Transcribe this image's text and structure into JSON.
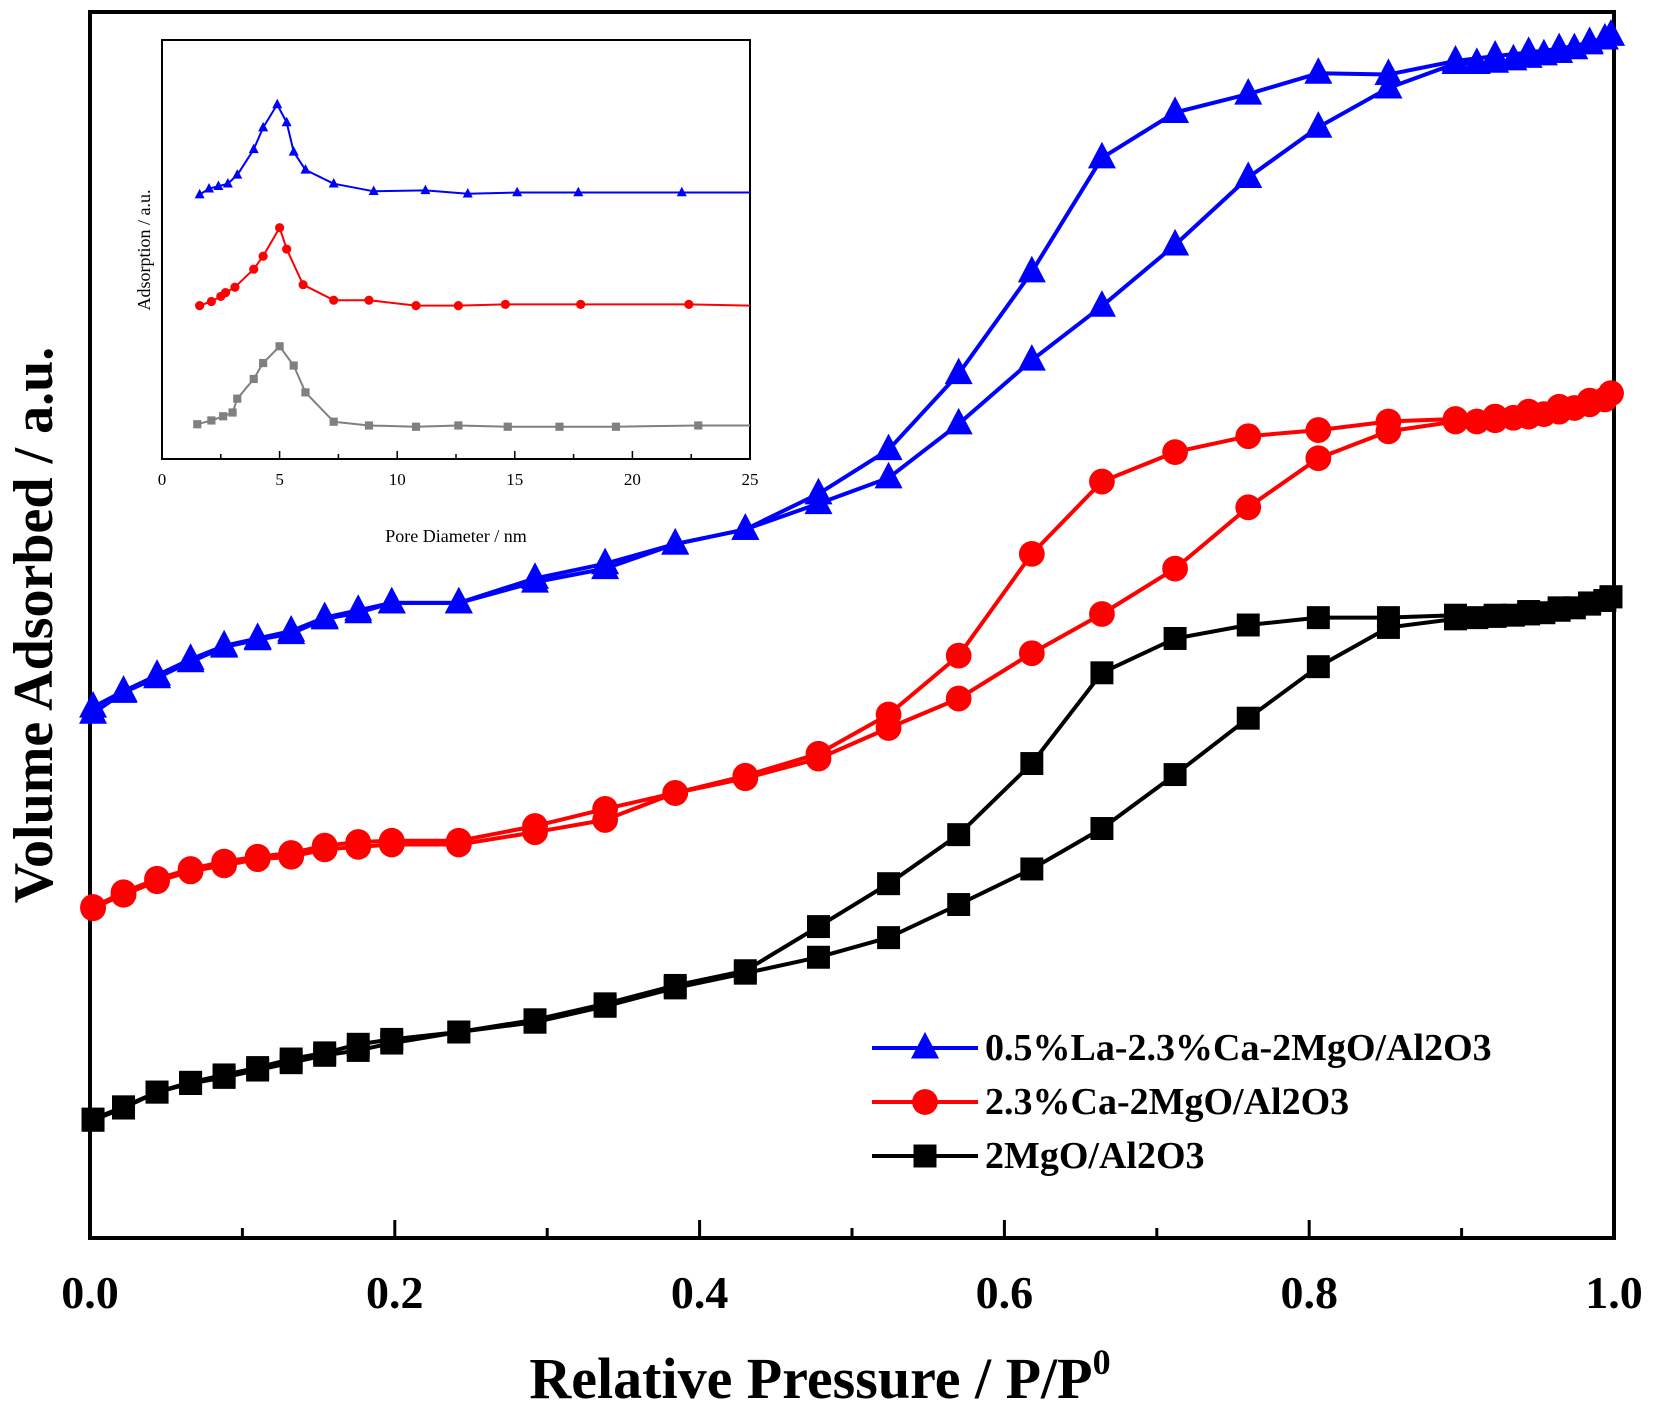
{
  "chart_data": [
    {
      "type": "line",
      "title": "",
      "xlabel": "Relative Pressure / P/P",
      "xlabel_superscript": "0",
      "ylabel": "Volume Adsorbed / a.u.",
      "xlim": [
        0,
        1
      ],
      "ylim": [
        0,
        100
      ],
      "x_ticks": [
        "0.0",
        "0.2",
        "0.4",
        "0.6",
        "0.8",
        "1.0"
      ],
      "y_ticks_shown": false,
      "legend_position": "bottom-right",
      "series": [
        {
          "name": "0.5%La-2.3%Ca-2MgO/Al2O3",
          "color": "#0000ff",
          "marker": "triangle",
          "adsorption": [
            [
              0.002,
              42.8
            ],
            [
              0.022,
              44.5
            ],
            [
              0.044,
              45.7
            ],
            [
              0.066,
              47.0
            ],
            [
              0.088,
              48.2
            ],
            [
              0.11,
              48.8
            ],
            [
              0.132,
              49.3
            ],
            [
              0.154,
              50.5
            ],
            [
              0.176,
              51.0
            ],
            [
              0.198,
              51.8
            ],
            [
              0.242,
              51.8
            ],
            [
              0.292,
              53.5
            ],
            [
              0.338,
              54.6
            ],
            [
              0.384,
              56.6
            ],
            [
              0.43,
              57.8
            ],
            [
              0.478,
              59.9
            ],
            [
              0.524,
              62.0
            ],
            [
              0.57,
              66.4
            ],
            [
              0.618,
              71.6
            ],
            [
              0.664,
              76.0
            ],
            [
              0.712,
              81.0
            ],
            [
              0.76,
              86.5
            ],
            [
              0.806,
              90.6
            ],
            [
              0.852,
              93.8
            ],
            [
              0.896,
              95.8
            ],
            [
              0.91,
              95.8
            ],
            [
              0.922,
              95.9
            ],
            [
              0.934,
              96.1
            ],
            [
              0.944,
              96.3
            ],
            [
              0.954,
              96.5
            ],
            [
              0.964,
              96.7
            ],
            [
              0.974,
              97.0
            ],
            [
              0.984,
              97.4
            ],
            [
              0.994,
              97.8
            ],
            [
              0.998,
              98.1
            ]
          ],
          "desorption": [
            [
              0.998,
              98.1
            ],
            [
              0.984,
              97.5
            ],
            [
              0.964,
              97.0
            ],
            [
              0.944,
              96.7
            ],
            [
              0.922,
              96.4
            ],
            [
              0.896,
              96.0
            ],
            [
              0.852,
              94.9
            ],
            [
              0.806,
              95.0
            ],
            [
              0.76,
              93.3
            ],
            [
              0.712,
              91.8
            ],
            [
              0.664,
              88.1
            ],
            [
              0.618,
              78.8
            ],
            [
              0.57,
              70.5
            ],
            [
              0.524,
              64.3
            ],
            [
              0.478,
              60.7
            ],
            [
              0.43,
              57.8
            ],
            [
              0.384,
              56.6
            ],
            [
              0.338,
              55.0
            ],
            [
              0.292,
              53.8
            ],
            [
              0.242,
              51.8
            ],
            [
              0.198,
              51.8
            ],
            [
              0.176,
              51.2
            ],
            [
              0.154,
              50.6
            ],
            [
              0.132,
              49.5
            ],
            [
              0.11,
              48.9
            ],
            [
              0.088,
              48.3
            ],
            [
              0.066,
              47.2
            ],
            [
              0.044,
              45.9
            ],
            [
              0.022,
              44.6
            ],
            [
              0.002,
              43.3
            ]
          ]
        },
        {
          "name": "2.3%Ca-2MgO/Al2O3",
          "color": "#ff0000",
          "marker": "circle",
          "adsorption": [
            [
              0.002,
              26.9
            ],
            [
              0.022,
              28.0
            ],
            [
              0.044,
              29.1
            ],
            [
              0.066,
              29.9
            ],
            [
              0.088,
              30.4
            ],
            [
              0.11,
              30.9
            ],
            [
              0.132,
              31.1
            ],
            [
              0.154,
              31.7
            ],
            [
              0.176,
              31.9
            ],
            [
              0.198,
              32.1
            ],
            [
              0.242,
              32.1
            ],
            [
              0.292,
              33.1
            ],
            [
              0.338,
              34.1
            ],
            [
              0.384,
              36.3
            ],
            [
              0.43,
              37.5
            ],
            [
              0.478,
              39.1
            ],
            [
              0.524,
              41.6
            ],
            [
              0.57,
              44.0
            ],
            [
              0.618,
              47.7
            ],
            [
              0.664,
              50.9
            ],
            [
              0.712,
              54.6
            ],
            [
              0.76,
              59.6
            ],
            [
              0.806,
              63.6
            ],
            [
              0.852,
              65.8
            ],
            [
              0.896,
              66.6
            ],
            [
              0.91,
              66.6
            ],
            [
              0.922,
              66.7
            ],
            [
              0.934,
              66.9
            ],
            [
              0.944,
              67.0
            ],
            [
              0.954,
              67.2
            ],
            [
              0.964,
              67.4
            ],
            [
              0.974,
              67.7
            ],
            [
              0.984,
              68.0
            ],
            [
              0.994,
              68.4
            ],
            [
              0.998,
              68.9
            ]
          ],
          "desorption": [
            [
              0.998,
              68.9
            ],
            [
              0.984,
              68.3
            ],
            [
              0.964,
              67.8
            ],
            [
              0.944,
              67.4
            ],
            [
              0.922,
              67.0
            ],
            [
              0.896,
              66.8
            ],
            [
              0.852,
              66.6
            ],
            [
              0.806,
              65.9
            ],
            [
              0.76,
              65.4
            ],
            [
              0.712,
              64.1
            ],
            [
              0.664,
              61.7
            ],
            [
              0.618,
              55.8
            ],
            [
              0.57,
              47.5
            ],
            [
              0.524,
              42.7
            ],
            [
              0.478,
              39.5
            ],
            [
              0.43,
              37.7
            ],
            [
              0.384,
              36.3
            ],
            [
              0.338,
              35.0
            ],
            [
              0.292,
              33.6
            ],
            [
              0.242,
              32.4
            ],
            [
              0.198,
              32.4
            ],
            [
              0.176,
              32.3
            ],
            [
              0.154,
              32.0
            ],
            [
              0.132,
              31.4
            ],
            [
              0.11,
              31.1
            ],
            [
              0.088,
              30.7
            ],
            [
              0.066,
              30.1
            ],
            [
              0.044,
              29.3
            ],
            [
              0.022,
              28.2
            ],
            [
              0.002,
              27.0
            ]
          ]
        },
        {
          "name": "2MgO/Al2O3",
          "color": "#000000",
          "marker": "square",
          "adsorption": [
            [
              0.002,
              9.6
            ],
            [
              0.022,
              10.6
            ],
            [
              0.044,
              11.9
            ],
            [
              0.066,
              12.6
            ],
            [
              0.088,
              13.1
            ],
            [
              0.11,
              13.7
            ],
            [
              0.132,
              14.3
            ],
            [
              0.154,
              14.9
            ],
            [
              0.176,
              15.3
            ],
            [
              0.198,
              15.9
            ],
            [
              0.242,
              16.8
            ],
            [
              0.292,
              17.6
            ],
            [
              0.338,
              18.9
            ],
            [
              0.384,
              20.4
            ],
            [
              0.43,
              21.6
            ],
            [
              0.478,
              22.9
            ],
            [
              0.524,
              24.5
            ],
            [
              0.57,
              27.2
            ],
            [
              0.618,
              30.1
            ],
            [
              0.664,
              33.4
            ],
            [
              0.712,
              37.8
            ],
            [
              0.76,
              42.4
            ],
            [
              0.806,
              46.6
            ],
            [
              0.852,
              49.8
            ],
            [
              0.896,
              50.5
            ],
            [
              0.91,
              50.6
            ],
            [
              0.922,
              50.7
            ],
            [
              0.934,
              50.8
            ],
            [
              0.944,
              50.9
            ],
            [
              0.954,
              51.0
            ],
            [
              0.964,
              51.2
            ],
            [
              0.974,
              51.4
            ],
            [
              0.984,
              51.7
            ],
            [
              0.994,
              52.0
            ],
            [
              0.998,
              52.3
            ]
          ],
          "desorption": [
            [
              0.998,
              52.3
            ],
            [
              0.984,
              51.8
            ],
            [
              0.964,
              51.4
            ],
            [
              0.944,
              51.1
            ],
            [
              0.922,
              50.8
            ],
            [
              0.896,
              50.8
            ],
            [
              0.852,
              50.6
            ],
            [
              0.806,
              50.6
            ],
            [
              0.76,
              50.0
            ],
            [
              0.712,
              48.9
            ],
            [
              0.664,
              46.1
            ],
            [
              0.618,
              38.7
            ],
            [
              0.57,
              32.9
            ],
            [
              0.524,
              28.9
            ],
            [
              0.478,
              25.4
            ],
            [
              0.43,
              21.8
            ],
            [
              0.384,
              20.6
            ],
            [
              0.338,
              19.1
            ],
            [
              0.292,
              17.8
            ],
            [
              0.242,
              16.8
            ],
            [
              0.198,
              16.2
            ],
            [
              0.176,
              15.8
            ],
            [
              0.154,
              15.1
            ],
            [
              0.132,
              14.6
            ],
            [
              0.11,
              13.9
            ],
            [
              0.088,
              13.3
            ],
            [
              0.066,
              12.7
            ],
            [
              0.044,
              11.9
            ],
            [
              0.022,
              10.7
            ],
            [
              0.002,
              9.7
            ]
          ]
        }
      ]
    },
    {
      "type": "line",
      "title": "",
      "xlabel": "Pore Diameter / nm",
      "ylabel": "Adsorption / a.u.",
      "xlim": [
        0,
        25
      ],
      "ylim": [
        0,
        100
      ],
      "x_ticks": [
        "0",
        "5",
        "10",
        "15",
        "20",
        "25"
      ],
      "y_ticks_shown": false,
      "legend": "none",
      "series": [
        {
          "name": "0.5%La-2.3%Ca-2MgO/Al2O3",
          "color": "#0000ff",
          "marker": "triangle",
          "points": [
            [
              1.6,
              63.1
            ],
            [
              2.0,
              64.5
            ],
            [
              2.4,
              65.1
            ],
            [
              2.8,
              65.7
            ],
            [
              3.2,
              67.8
            ],
            [
              3.9,
              73.9
            ],
            [
              4.3,
              79.1
            ],
            [
              4.9,
              84.6
            ],
            [
              5.3,
              80.3
            ],
            [
              5.6,
              73.3
            ],
            [
              6.1,
              69.0
            ],
            [
              7.3,
              65.7
            ],
            [
              9.0,
              63.9
            ],
            [
              11.2,
              64.1
            ],
            [
              13.0,
              63.3
            ],
            [
              15.1,
              63.6
            ],
            [
              17.7,
              63.6
            ],
            [
              22.1,
              63.6
            ],
            [
              25.0,
              63.6
            ]
          ]
        },
        {
          "name": "2.3%Ca-2MgO/Al2O3",
          "color": "#ff0000",
          "marker": "circle",
          "points": [
            [
              1.6,
              36.6
            ],
            [
              2.1,
              37.6
            ],
            [
              2.5,
              38.8
            ],
            [
              2.7,
              39.7
            ],
            [
              3.1,
              41.0
            ],
            [
              3.9,
              45.3
            ],
            [
              4.3,
              48.4
            ],
            [
              5.0,
              55.2
            ],
            [
              5.3,
              50.1
            ],
            [
              6.0,
              41.6
            ],
            [
              7.3,
              37.9
            ],
            [
              8.8,
              37.9
            ],
            [
              10.8,
              36.6
            ],
            [
              12.6,
              36.6
            ],
            [
              14.6,
              36.9
            ],
            [
              17.8,
              36.9
            ],
            [
              22.4,
              36.9
            ],
            [
              25.0,
              36.6
            ]
          ]
        },
        {
          "name": "2MgO/Al2O3",
          "color": "#808080",
          "marker": "square",
          "points": [
            [
              1.5,
              8.3
            ],
            [
              2.1,
              9.2
            ],
            [
              2.6,
              10.2
            ],
            [
              3.0,
              11.1
            ],
            [
              3.2,
              14.4
            ],
            [
              3.9,
              19.1
            ],
            [
              4.3,
              22.9
            ],
            [
              5.0,
              26.9
            ],
            [
              5.6,
              22.3
            ],
            [
              6.1,
              15.9
            ],
            [
              7.3,
              8.9
            ],
            [
              8.8,
              8.0
            ],
            [
              10.8,
              7.7
            ],
            [
              12.6,
              8.0
            ],
            [
              14.7,
              7.7
            ],
            [
              16.9,
              7.7
            ],
            [
              19.3,
              7.7
            ],
            [
              22.8,
              8.0
            ],
            [
              25.0,
              8.0
            ]
          ]
        }
      ]
    }
  ]
}
